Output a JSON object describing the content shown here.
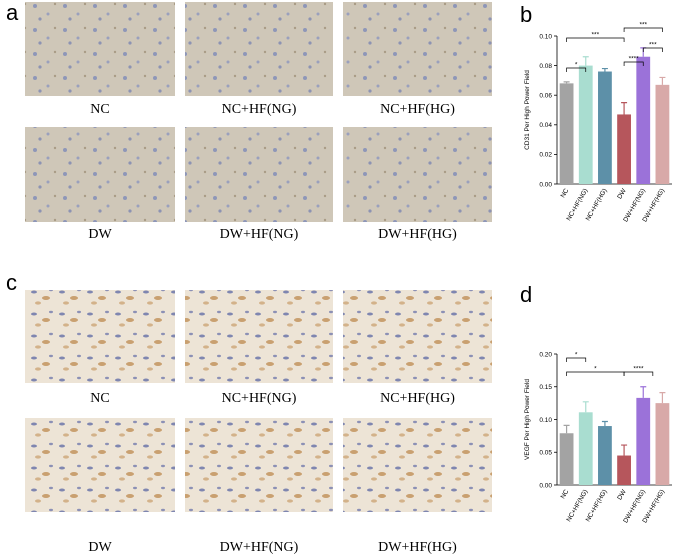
{
  "panel_labels": [
    "a",
    "b",
    "c",
    "d"
  ],
  "panel_a": {
    "labels": [
      "NC",
      "NC+HF(NG)",
      "NC+HF(HG)",
      "DW",
      "DW+HF(NG)",
      "DW+HF(HG)"
    ]
  },
  "panel_c": {
    "labels": [
      "NC",
      "NC+HF(NG)",
      "NC+HF(HG)",
      "DW",
      "DW+HF(NG)",
      "DW+HF(HG)"
    ]
  },
  "chart_data": [
    {
      "type": "bar",
      "y_label": "CD31 Per High Power Field",
      "categories": [
        "NC",
        "NC+HF(NG)",
        "NC+HF(HG)",
        "DW",
        "DW+HF(NG)",
        "DW+HF(HG)"
      ],
      "values": [
        0.068,
        0.08,
        0.076,
        0.047,
        0.086,
        0.067
      ],
      "errors": [
        0.001,
        0.006,
        0.002,
        0.008,
        0.006,
        0.005
      ],
      "colors": [
        "#a3a3a3",
        "#a9ddd0",
        "#5d90a8",
        "#b6565c",
        "#9b72d9",
        "#d8a9a8"
      ],
      "ylim": [
        0,
        0.1
      ],
      "yticks": [
        {
          "value": 0,
          "label": "0.00"
        },
        {
          "value": 0.02,
          "label": "0.02"
        },
        {
          "value": 0.04,
          "label": "0.04"
        },
        {
          "value": 0.06,
          "label": "0.06"
        },
        {
          "value": 0.08,
          "label": "0.08"
        },
        {
          "value": 0.1,
          "label": "0.10"
        }
      ],
      "annotations": [
        "*",
        "***",
        "***",
        "***",
        "****"
      ]
    },
    {
      "type": "bar",
      "y_label": "VEGF Per High Power Field",
      "categories": [
        "NC",
        "NC+HF(NG)",
        "NC+HF(HG)",
        "DW",
        "DW+HF(NG)",
        "DW+HF(HG)"
      ],
      "values": [
        0.079,
        0.111,
        0.09,
        0.045,
        0.133,
        0.125
      ],
      "errors": [
        0.012,
        0.016,
        0.007,
        0.016,
        0.017,
        0.016
      ],
      "colors": [
        "#a3a3a3",
        "#a9ddd0",
        "#5d90a8",
        "#b6565c",
        "#9b72d9",
        "#d8a9a8"
      ],
      "ylim": [
        0,
        0.2
      ],
      "yticks": [
        {
          "value": 0,
          "label": "0.00"
        },
        {
          "value": 0.05,
          "label": "0.05"
        },
        {
          "value": 0.1,
          "label": "0.10"
        },
        {
          "value": 0.15,
          "label": "0.15"
        },
        {
          "value": 0.2,
          "label": "0.20"
        }
      ],
      "annotations": [
        "*",
        "*",
        "****"
      ]
    }
  ]
}
